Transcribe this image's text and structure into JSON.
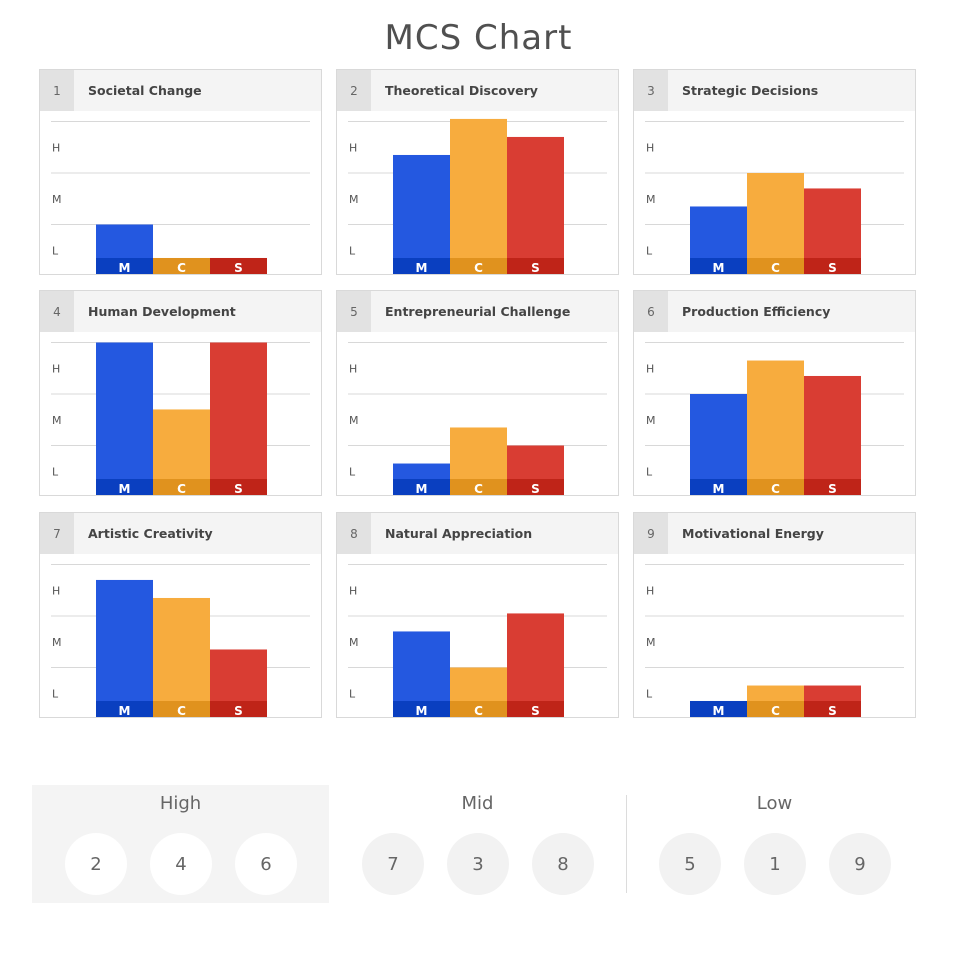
{
  "title": "MCS Chart",
  "colors": {
    "M": "#2458e0",
    "M_band": "#0a3fc0",
    "C": "#f7ac3e",
    "C_band": "#e0921e",
    "S": "#d93d33",
    "S_band": "#bf2418",
    "grid": "#d8d8d8",
    "axis_text": "#555555",
    "band_text": "#ffffff"
  },
  "chart_data": [
    {
      "type": "bar",
      "id": 1,
      "number": "1",
      "title": "Societal Change",
      "categories": [
        "M",
        "C",
        "S"
      ],
      "values": [
        1.0,
        0.35,
        0.35
      ],
      "yticks": [
        "L",
        "M",
        "H"
      ],
      "ylim": [
        0,
        3.0
      ]
    },
    {
      "type": "bar",
      "id": 2,
      "number": "2",
      "title": "Theoretical Discovery",
      "categories": [
        "M",
        "C",
        "S"
      ],
      "values": [
        2.35,
        3.05,
        2.7
      ],
      "yticks": [
        "L",
        "M",
        "H"
      ],
      "ylim": [
        0,
        3.0
      ]
    },
    {
      "type": "bar",
      "id": 3,
      "number": "3",
      "title": "Strategic Decisions",
      "categories": [
        "M",
        "C",
        "S"
      ],
      "values": [
        1.35,
        2.0,
        1.7
      ],
      "yticks": [
        "L",
        "M",
        "H"
      ],
      "ylim": [
        0,
        3.0
      ]
    },
    {
      "type": "bar",
      "id": 4,
      "number": "4",
      "title": "Human Development",
      "categories": [
        "M",
        "C",
        "S"
      ],
      "values": [
        3.0,
        1.7,
        3.0
      ],
      "yticks": [
        "L",
        "M",
        "H"
      ],
      "ylim": [
        0,
        3.0
      ]
    },
    {
      "type": "bar",
      "id": 5,
      "number": "5",
      "title": "Entrepreneurial Challenge",
      "categories": [
        "M",
        "C",
        "S"
      ],
      "values": [
        0.65,
        1.35,
        1.0
      ],
      "yticks": [
        "L",
        "M",
        "H"
      ],
      "ylim": [
        0,
        3.0
      ]
    },
    {
      "type": "bar",
      "id": 6,
      "number": "6",
      "title": "Production Efficiency",
      "categories": [
        "M",
        "C",
        "S"
      ],
      "values": [
        2.0,
        2.65,
        2.35
      ],
      "yticks": [
        "L",
        "M",
        "H"
      ],
      "ylim": [
        0,
        3.0
      ]
    },
    {
      "type": "bar",
      "id": 7,
      "number": "7",
      "title": "Artistic Creativity",
      "categories": [
        "M",
        "C",
        "S"
      ],
      "values": [
        2.7,
        2.35,
        1.35
      ],
      "yticks": [
        "L",
        "M",
        "H"
      ],
      "ylim": [
        0,
        3.0
      ]
    },
    {
      "type": "bar",
      "id": 8,
      "number": "8",
      "title": "Natural Appreciation",
      "categories": [
        "M",
        "C",
        "S"
      ],
      "values": [
        1.7,
        1.0,
        2.05
      ],
      "yticks": [
        "L",
        "M",
        "H"
      ],
      "ylim": [
        0,
        3.0
      ]
    },
    {
      "type": "bar",
      "id": 9,
      "number": "9",
      "title": "Motivational Energy",
      "categories": [
        "M",
        "C",
        "S"
      ],
      "values": [
        0.35,
        0.65,
        0.65
      ],
      "yticks": [
        "L",
        "M",
        "H"
      ],
      "ylim": [
        0,
        3.0
      ]
    }
  ],
  "groups": [
    {
      "label": "High",
      "items": [
        "2",
        "4",
        "6"
      ],
      "highlighted": true
    },
    {
      "label": "Mid",
      "items": [
        "7",
        "3",
        "8"
      ],
      "highlighted": false
    },
    {
      "label": "Low",
      "items": [
        "5",
        "1",
        "9"
      ],
      "highlighted": false
    }
  ]
}
